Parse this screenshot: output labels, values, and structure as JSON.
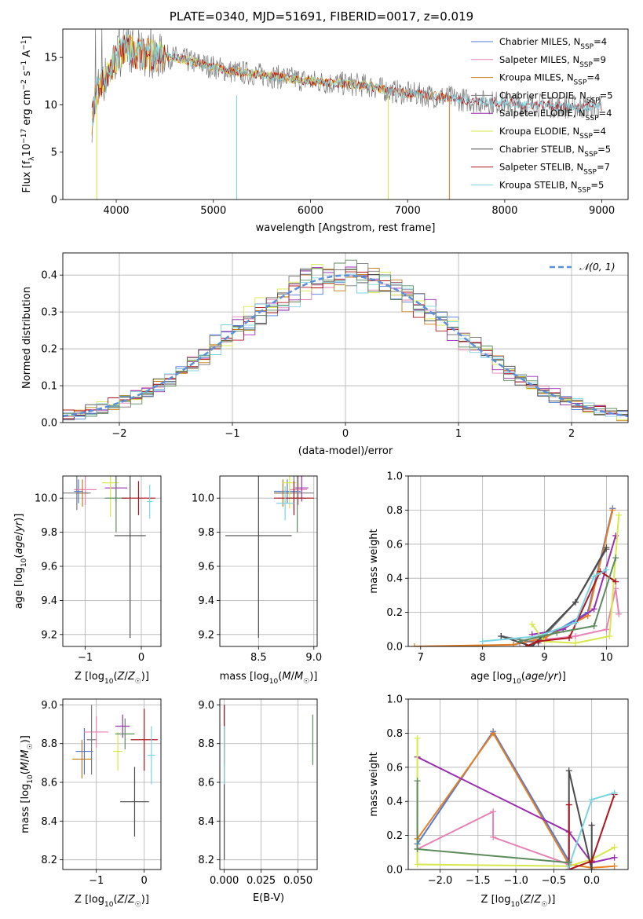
{
  "figure": {
    "title": "PLATE=0340, MJD=51691, FIBERID=0017, z=0.019"
  },
  "colors": {
    "Chabrier MILES": "#4f78d6",
    "Salpeter MILES": "#e682b4",
    "Kroupa MILES": "#c57814",
    "Chabrier ELODIE": "#7a7a7a",
    "Salpeter ELODIE": "#9a2fb0",
    "Kroupa ELODIE": "#d6e84a",
    "Chabrier STELIB": "#4a4a4a",
    "Salpeter STELIB": "#b0141e",
    "Kroupa STELIB": "#7ad4e0",
    "model_orange": "#e67e22",
    "model_green": "#5c8a5c",
    "normal_curve": "#5b8fd9"
  },
  "chart_data": [
    {
      "id": "spectrum",
      "type": "line",
      "title": "PLATE=0340, MJD=51691, FIBERID=0017, z=0.019",
      "xlabel": "wavelength [Angstrom, rest frame]",
      "ylabel": "Flux [f_λ10^-17 erg cm^-2 s^-1 A^-1]",
      "xlim": [
        3450,
        9270
      ],
      "ylim": [
        0,
        18
      ],
      "xticks": [
        "4000",
        "5000",
        "6000",
        "7000",
        "8000",
        "9000"
      ],
      "yticks": [
        "0",
        "5",
        "10",
        "15"
      ],
      "grid": false,
      "legend_position": "upper right",
      "legend": [
        {
          "label": "Chabrier MILES, N",
          "sub": "SSP",
          "value": "=4",
          "color_key": "Chabrier MILES"
        },
        {
          "label": "Salpeter MILES, N",
          "sub": "SSP",
          "value": "=9",
          "color_key": "Salpeter MILES"
        },
        {
          "label": "Kroupa MILES, N",
          "sub": "SSP",
          "value": "=4",
          "color_key": "Kroupa MILES"
        },
        {
          "label": "Chabrier ELODIE, N",
          "sub": "SSP",
          "value": "=5",
          "color_key": "Chabrier ELODIE"
        },
        {
          "label": "Salpeter ELODIE, N",
          "sub": "SSP",
          "value": "=4",
          "color_key": "Salpeter ELODIE"
        },
        {
          "label": "Kroupa ELODIE, N",
          "sub": "SSP",
          "value": "=4",
          "color_key": "Kroupa ELODIE"
        },
        {
          "label": "Chabrier STELIB, N",
          "sub": "SSP",
          "value": "=5",
          "color_key": "Chabrier STELIB"
        },
        {
          "label": "Salpeter STELIB, N",
          "sub": "SSP",
          "value": "=7",
          "color_key": "Salpeter STELIB"
        },
        {
          "label": "Kroupa STELIB, N",
          "sub": "SSP",
          "value": "=5",
          "color_key": "Kroupa STELIB"
        }
      ],
      "continuum": {
        "x": [
          3750,
          3800,
          3900,
          4000,
          4100,
          4200,
          4400,
          4600,
          4800,
          5000,
          5200,
          5400,
          5600,
          5800,
          6000,
          6200,
          6400,
          6600,
          6800,
          7000,
          7200,
          7400,
          7600,
          7800,
          8000,
          8200,
          8400,
          8600,
          8800,
          9000
        ],
        "y": [
          8.5,
          11.5,
          13.0,
          15.0,
          16.0,
          15.5,
          15.2,
          15.0,
          14.5,
          14.0,
          13.5,
          13.3,
          13.0,
          12.8,
          12.5,
          12.3,
          12.2,
          12.0,
          11.5,
          11.2,
          11.0,
          10.8,
          10.5,
          10.3,
          10.2,
          10.0,
          10.0,
          9.8,
          9.8,
          9.8
        ]
      }
    },
    {
      "id": "residuals",
      "type": "line",
      "xlabel": "(data-model)/error",
      "ylabel": "Normed distribution",
      "xlim": [
        -2.5,
        2.5
      ],
      "ylim": [
        0,
        0.46
      ],
      "xticks": [
        "−2",
        "−1",
        "0",
        "1",
        "2"
      ],
      "yticks": [
        "0.0",
        "0.1",
        "0.2",
        "0.3",
        "0.4"
      ],
      "grid": true,
      "legend_position": "upper right",
      "legend": [
        {
          "label": "𝒩(0, 1)",
          "style": "dashed"
        }
      ],
      "curve": "standard normal N(0,1)"
    },
    {
      "id": "age_vs_z",
      "type": "scatter",
      "xlabel": "Z [log10(Z/Z☉)]",
      "ylabel": "age  [log10(age/yr)]",
      "xlim": [
        -1.4,
        0.35
      ],
      "ylim": [
        9.13,
        10.13
      ],
      "xticks": [
        "−1",
        "0"
      ],
      "yticks": [
        "9.2",
        "9.4",
        "9.6",
        "9.8",
        "10.0"
      ],
      "grid": true,
      "points": [
        {
          "x": -1.12,
          "y": 10.04,
          "xerr": 0.08,
          "yerr": 0.07,
          "color_key": "Chabrier MILES"
        },
        {
          "x": -1.0,
          "y": 10.05,
          "xerr": 0.2,
          "yerr": 0.09,
          "color_key": "Salpeter MILES"
        },
        {
          "x": -1.05,
          "y": 10.03,
          "xerr": 0.1,
          "yerr": 0.08,
          "color_key": "Kroupa MILES"
        },
        {
          "x": -1.15,
          "y": 10.03,
          "xerr": 0.25,
          "yerr": 0.1,
          "color_key": "Chabrier ELODIE"
        },
        {
          "x": -0.45,
          "y": 10.06,
          "xerr": 0.2,
          "yerr": 0.08,
          "color_key": "Salpeter ELODIE"
        },
        {
          "x": -0.55,
          "y": 10.09,
          "xerr": 0.15,
          "yerr": 0.2,
          "color_key": "Kroupa ELODIE"
        },
        {
          "x": -0.45,
          "y": 10.0,
          "xerr": 0.2,
          "yerr": 0.2,
          "color_key": "model_green"
        },
        {
          "x": -0.2,
          "y": 9.78,
          "xerr": 0.28,
          "yerr": 0.6,
          "color_key": "Chabrier STELIB"
        },
        {
          "x": -0.05,
          "y": 10.0,
          "xerr": 0.3,
          "yerr": 0.1,
          "color_key": "Salpeter STELIB"
        },
        {
          "x": 0.15,
          "y": 9.98,
          "xerr": 0.05,
          "yerr": 0.1,
          "color_key": "Kroupa STELIB"
        }
      ]
    },
    {
      "id": "age_vs_mass",
      "type": "scatter",
      "xlabel": "mass [log10(M/M☉)]",
      "ylabel": "",
      "xlim": [
        8.15,
        9.03
      ],
      "ylim": [
        9.13,
        10.13
      ],
      "xticks": [
        "8.5",
        "9.0"
      ],
      "yticks": [
        "9.2",
        "9.4",
        "9.6",
        "9.8",
        "10.0"
      ],
      "grid": true,
      "points": [
        {
          "x": 8.76,
          "y": 10.04,
          "xerr": 0.12,
          "yerr": 0.07,
          "color_key": "Chabrier MILES"
        },
        {
          "x": 8.86,
          "y": 10.05,
          "xerr": 0.08,
          "yerr": 0.09,
          "color_key": "Salpeter MILES"
        },
        {
          "x": 8.72,
          "y": 10.03,
          "xerr": 0.08,
          "yerr": 0.08,
          "color_key": "Kroupa MILES"
        },
        {
          "x": 8.82,
          "y": 10.03,
          "xerr": 0.18,
          "yerr": 0.1,
          "color_key": "Chabrier ELODIE"
        },
        {
          "x": 8.89,
          "y": 10.06,
          "xerr": 0.06,
          "yerr": 0.08,
          "color_key": "Salpeter ELODIE"
        },
        {
          "x": 8.78,
          "y": 10.09,
          "xerr": 0.06,
          "yerr": 0.15,
          "color_key": "Kroupa ELODIE"
        },
        {
          "x": 8.85,
          "y": 10.0,
          "xerr": 0.08,
          "yerr": 0.2,
          "color_key": "model_green"
        },
        {
          "x": 8.5,
          "y": 9.78,
          "xerr": 0.3,
          "yerr": 0.6,
          "color_key": "Chabrier STELIB"
        },
        {
          "x": 8.82,
          "y": 10.0,
          "xerr": 0.18,
          "yerr": 0.1,
          "color_key": "Salpeter STELIB"
        },
        {
          "x": 8.74,
          "y": 9.97,
          "xerr": 0.08,
          "yerr": 0.1,
          "color_key": "Kroupa STELIB"
        }
      ]
    },
    {
      "id": "massweight_vs_age",
      "type": "line",
      "xlabel": "age  [log10(age/yr)]",
      "ylabel": "mass weight",
      "xlim": [
        6.8,
        10.35
      ],
      "ylim": [
        0,
        1.0
      ],
      "xticks": [
        "7",
        "8",
        "9",
        "10"
      ],
      "yticks": [
        "0.0",
        "0.2",
        "0.4",
        "0.6",
        "0.8",
        "1.0"
      ],
      "grid": true,
      "series": [
        {
          "color_key": "Chabrier MILES",
          "x": [
            8.5,
            9.0,
            9.7,
            10.1
          ],
          "y": [
            0.01,
            0.05,
            0.2,
            0.81
          ]
        },
        {
          "color_key": "Salpeter MILES",
          "x": [
            8.6,
            9.0,
            9.5,
            10.0,
            10.15,
            10.2
          ],
          "y": [
            0.02,
            0.04,
            0.06,
            0.1,
            0.34,
            0.19
          ]
        },
        {
          "color_key": "model_orange",
          "x": [
            6.9,
            8.5,
            9.0,
            9.7,
            10.1
          ],
          "y": [
            0.0,
            0.01,
            0.05,
            0.18,
            0.8
          ]
        },
        {
          "color_key": "Chabrier ELODIE",
          "x": [
            8.3,
            8.9,
            9.5,
            10.0
          ],
          "y": [
            0.06,
            0.02,
            0.26,
            0.57
          ]
        },
        {
          "color_key": "Salpeter ELODIE",
          "x": [
            8.8,
            9.3,
            9.8,
            10.15
          ],
          "y": [
            0.07,
            0.1,
            0.22,
            0.65
          ]
        },
        {
          "color_key": "Kroupa ELODIE",
          "x": [
            8.8,
            9.0,
            9.5,
            10.05,
            10.2
          ],
          "y": [
            0.13,
            0.03,
            0.02,
            0.06,
            0.77
          ]
        },
        {
          "color_key": "Chabrier STELIB",
          "x": [
            8.3,
            8.8,
            9.5,
            10.0
          ],
          "y": [
            0.06,
            0.0,
            0.26,
            0.58
          ]
        },
        {
          "color_key": "Salpeter STELIB",
          "x": [
            8.7,
            8.9,
            9.4,
            9.9,
            10.15
          ],
          "y": [
            0.0,
            0.03,
            0.05,
            0.44,
            0.38
          ]
        },
        {
          "color_key": "Kroupa STELIB",
          "x": [
            8.0,
            8.9,
            9.5,
            9.8,
            10.0
          ],
          "y": [
            0.03,
            0.06,
            0.14,
            0.41,
            0.45
          ]
        },
        {
          "color_key": "model_green",
          "x": [
            8.6,
            9.2,
            9.8,
            10.15
          ],
          "y": [
            0.03,
            0.08,
            0.12,
            0.52
          ]
        }
      ]
    },
    {
      "id": "mass_vs_z",
      "type": "scatter",
      "xlabel": "Z [log10(Z/Z☉)]",
      "ylabel": "mass [log10(M/M☉)]",
      "xlim": [
        -1.7,
        0.35
      ],
      "ylim": [
        8.15,
        9.03
      ],
      "xticks": [
        "−1",
        "0"
      ],
      "yticks": [
        "8.2",
        "8.4",
        "8.6",
        "8.8",
        "9.0"
      ],
      "grid": true,
      "points": [
        {
          "x": -1.25,
          "y": 8.76,
          "xerr": 0.18,
          "yerr": 0.12,
          "color_key": "Chabrier MILES"
        },
        {
          "x": -1.0,
          "y": 8.86,
          "xerr": 0.25,
          "yerr": 0.08,
          "color_key": "Salpeter MILES"
        },
        {
          "x": -1.3,
          "y": 8.72,
          "xerr": 0.2,
          "yerr": 0.1,
          "color_key": "Kroupa MILES"
        },
        {
          "x": -1.1,
          "y": 8.82,
          "xerr": 0.1,
          "yerr": 0.18,
          "color_key": "Chabrier ELODIE"
        },
        {
          "x": -0.45,
          "y": 8.89,
          "xerr": 0.15,
          "yerr": 0.06,
          "color_key": "Salpeter ELODIE"
        },
        {
          "x": -0.55,
          "y": 8.76,
          "xerr": 0.1,
          "yerr": 0.1,
          "color_key": "Kroupa ELODIE"
        },
        {
          "x": -0.4,
          "y": 8.85,
          "xerr": 0.2,
          "yerr": 0.08,
          "color_key": "model_green"
        },
        {
          "x": -0.2,
          "y": 8.5,
          "xerr": 0.3,
          "yerr": 0.18,
          "color_key": "Chabrier STELIB"
        },
        {
          "x": 0.0,
          "y": 8.82,
          "xerr": 0.28,
          "yerr": 0.16,
          "color_key": "Salpeter STELIB"
        },
        {
          "x": 0.15,
          "y": 8.74,
          "xerr": 0.08,
          "yerr": 0.15,
          "color_key": "Kroupa STELIB"
        }
      ]
    },
    {
      "id": "mass_vs_ebv",
      "type": "scatter",
      "xlabel": "E(B-V)",
      "ylabel": "",
      "xlim": [
        -0.003,
        0.063
      ],
      "ylim": [
        8.15,
        9.03
      ],
      "xticks": [
        "0.000",
        "0.025",
        "0.050"
      ],
      "yticks": [
        "8.2",
        "8.4",
        "8.6",
        "8.8",
        "9.0"
      ],
      "grid": true,
      "points": [
        {
          "x": 0.0,
          "y": 8.6,
          "xerr": 0.0,
          "yerr": 0.4,
          "color_key": "Chabrier STELIB"
        },
        {
          "x": 0.0,
          "y": 8.85,
          "xerr": 0.0,
          "yerr": 0.15,
          "color_key": "Salpeter STELIB"
        },
        {
          "x": 0.0,
          "y": 8.74,
          "xerr": 0.0,
          "yerr": 0.15,
          "color_key": "Kroupa STELIB"
        },
        {
          "x": 0.06,
          "y": 8.82,
          "xerr": 0.0,
          "yerr": 0.13,
          "color_key": "model_green"
        }
      ]
    },
    {
      "id": "massweight_vs_z",
      "type": "line",
      "xlabel": "Z [log10(Z/Z☉)]",
      "ylabel": "mass weight",
      "xlim": [
        -2.42,
        0.48
      ],
      "ylim": [
        0,
        1.0
      ],
      "xticks": [
        "−2.0",
        "−1.5",
        "−1.0",
        "−0.5",
        "0.0"
      ],
      "yticks": [
        "0.0",
        "0.2",
        "0.4",
        "0.6",
        "0.8",
        "1.0"
      ],
      "grid": true,
      "series": [
        {
          "color_key": "Chabrier MILES",
          "x": [
            -2.3,
            -1.3,
            -0.3
          ],
          "y": [
            0.15,
            0.81,
            0.05
          ]
        },
        {
          "color_key": "model_orange",
          "x": [
            -2.3,
            -1.3,
            -0.3,
            0.0,
            0.3
          ],
          "y": [
            0.18,
            0.8,
            0.03,
            0.01,
            0.02
          ]
        },
        {
          "color_key": "Salpeter MILES",
          "x": [
            -2.3,
            -1.3,
            -1.3,
            -0.3,
            -0.3
          ],
          "y": [
            0.12,
            0.34,
            0.19,
            0.03,
            0.04
          ]
        },
        {
          "color_key": "Salpeter ELODIE",
          "x": [
            -2.3,
            -0.3,
            0.0,
            0.3
          ],
          "y": [
            0.66,
            0.22,
            0.04,
            0.07
          ]
        },
        {
          "color_key": "Kroupa ELODIE",
          "x": [
            -2.3,
            -2.3,
            -0.3,
            0.0,
            0.3
          ],
          "y": [
            0.77,
            0.03,
            0.02,
            0.06,
            0.13
          ]
        },
        {
          "color_key": "Chabrier STELIB",
          "x": [
            -0.3,
            -0.3,
            0.0,
            0.0
          ],
          "y": [
            0.0,
            0.58,
            0.0,
            0.26
          ]
        },
        {
          "color_key": "Salpeter STELIB",
          "x": [
            -0.3,
            -0.3,
            0.0,
            0.3
          ],
          "y": [
            0.38,
            0.0,
            0.05,
            0.44
          ]
        },
        {
          "color_key": "Kroupa STELIB",
          "x": [
            -0.3,
            0.0,
            0.3
          ],
          "y": [
            0.02,
            0.41,
            0.45
          ]
        },
        {
          "color_key": "model_green",
          "x": [
            -2.3,
            -2.3,
            -0.3
          ],
          "y": [
            0.52,
            0.12,
            0.04
          ]
        }
      ]
    }
  ]
}
